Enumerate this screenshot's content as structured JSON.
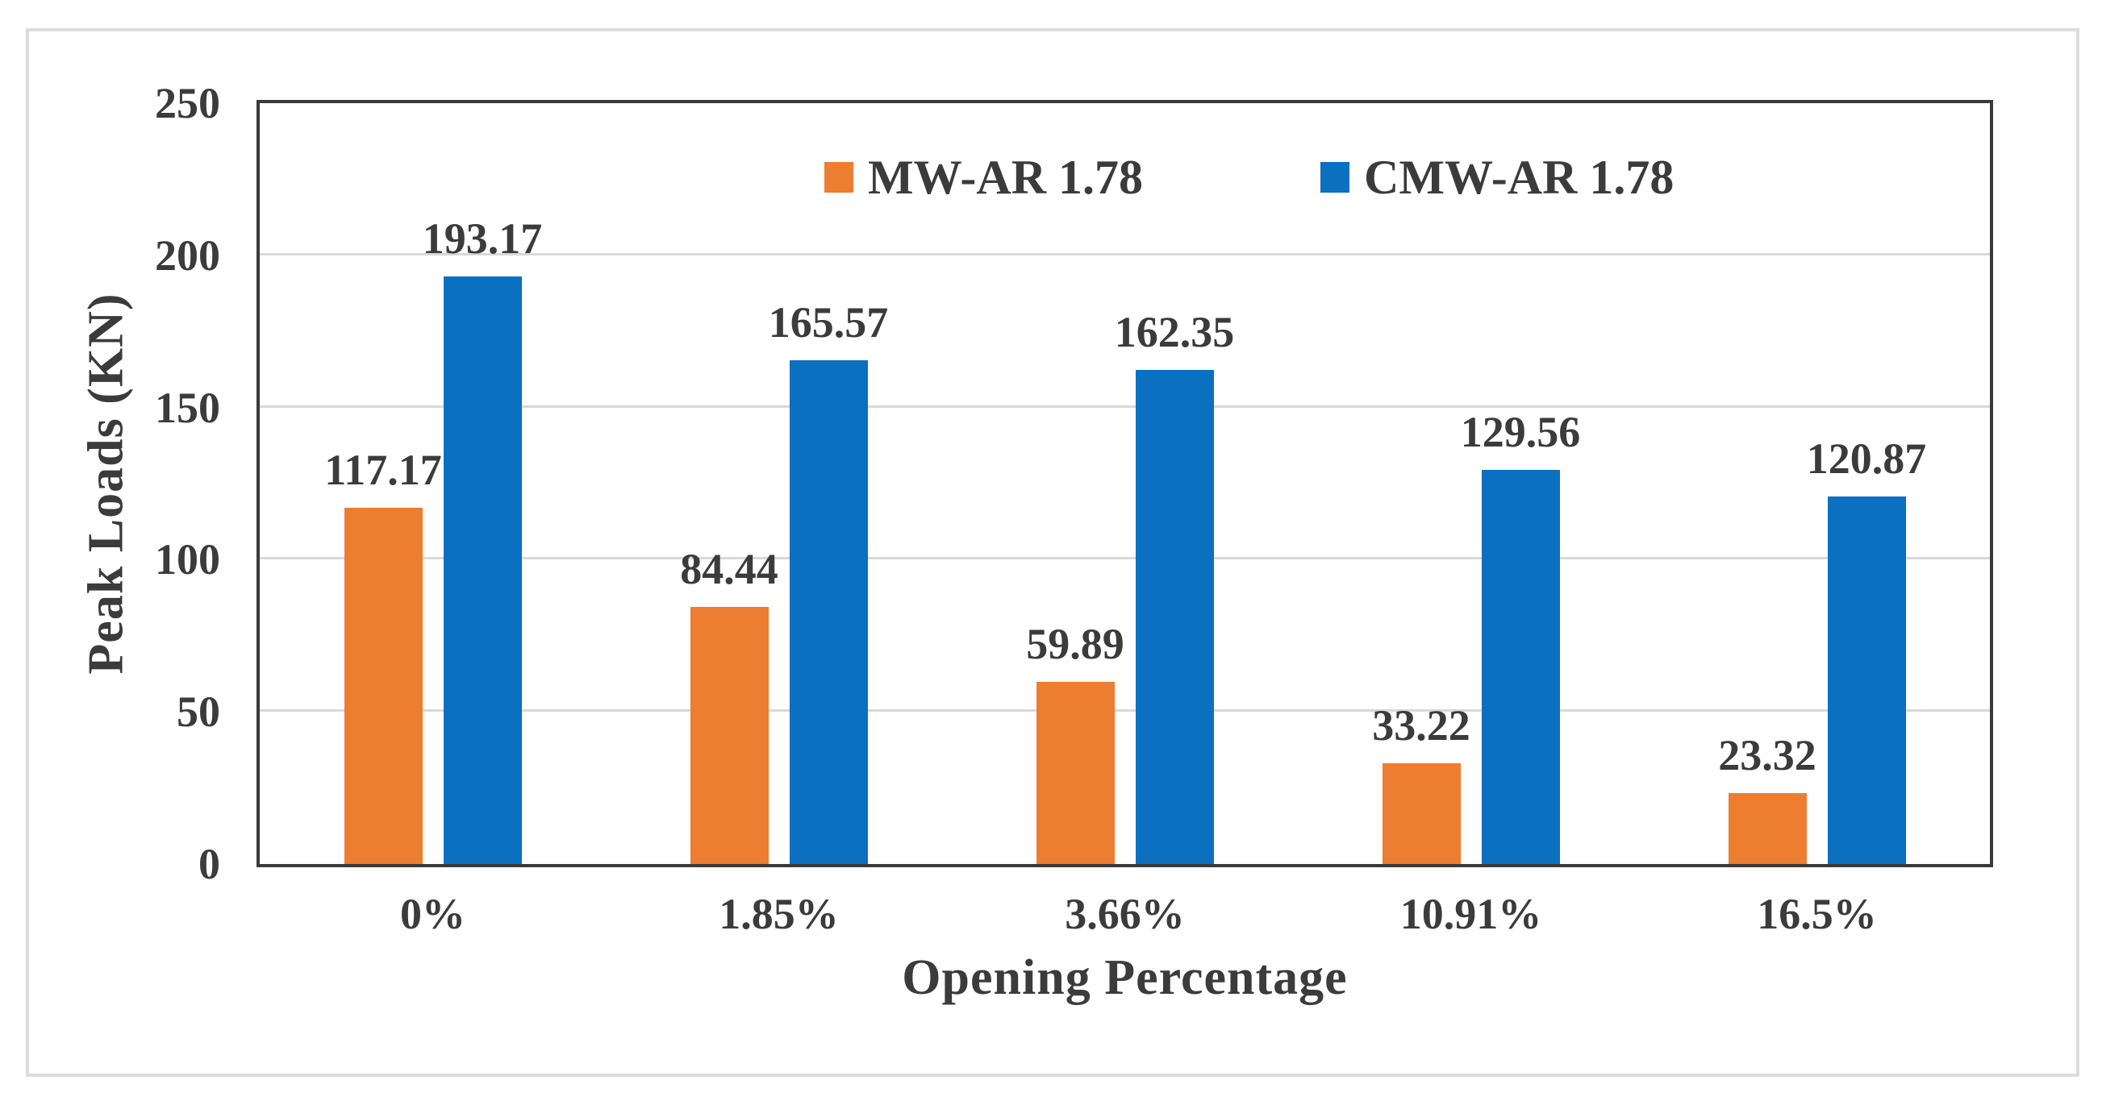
{
  "chart_data": {
    "type": "bar",
    "title": "",
    "categories": [
      "0%",
      "1.85%",
      "3.66%",
      "10.91%",
      "16.5%"
    ],
    "series": [
      {
        "name": "MW-AR 1.78",
        "color": "#ED7D31",
        "values": [
          117.17,
          84.44,
          59.89,
          33.22,
          23.32
        ]
      },
      {
        "name": "CMW-AR 1.78",
        "color": "#0B70C0",
        "values": [
          193.17,
          165.57,
          162.35,
          129.56,
          120.87
        ]
      }
    ],
    "xlabel": "Opening Percentage",
    "ylabel": "Peak Loads (KN)",
    "ylim": [
      0,
      250
    ],
    "yticks": [
      0,
      50,
      100,
      150,
      200,
      250
    ],
    "grid": "horizontal",
    "legend_position": "top-center-inside",
    "value_labels": true,
    "value_label_decimals": 2
  },
  "styles": {
    "text_color": "#3b3b3b",
    "grid_color": "#d9d9d9",
    "axis_color": "#3a3a3a",
    "frame_color": "#dcdcdc",
    "background": "#ffffff"
  }
}
